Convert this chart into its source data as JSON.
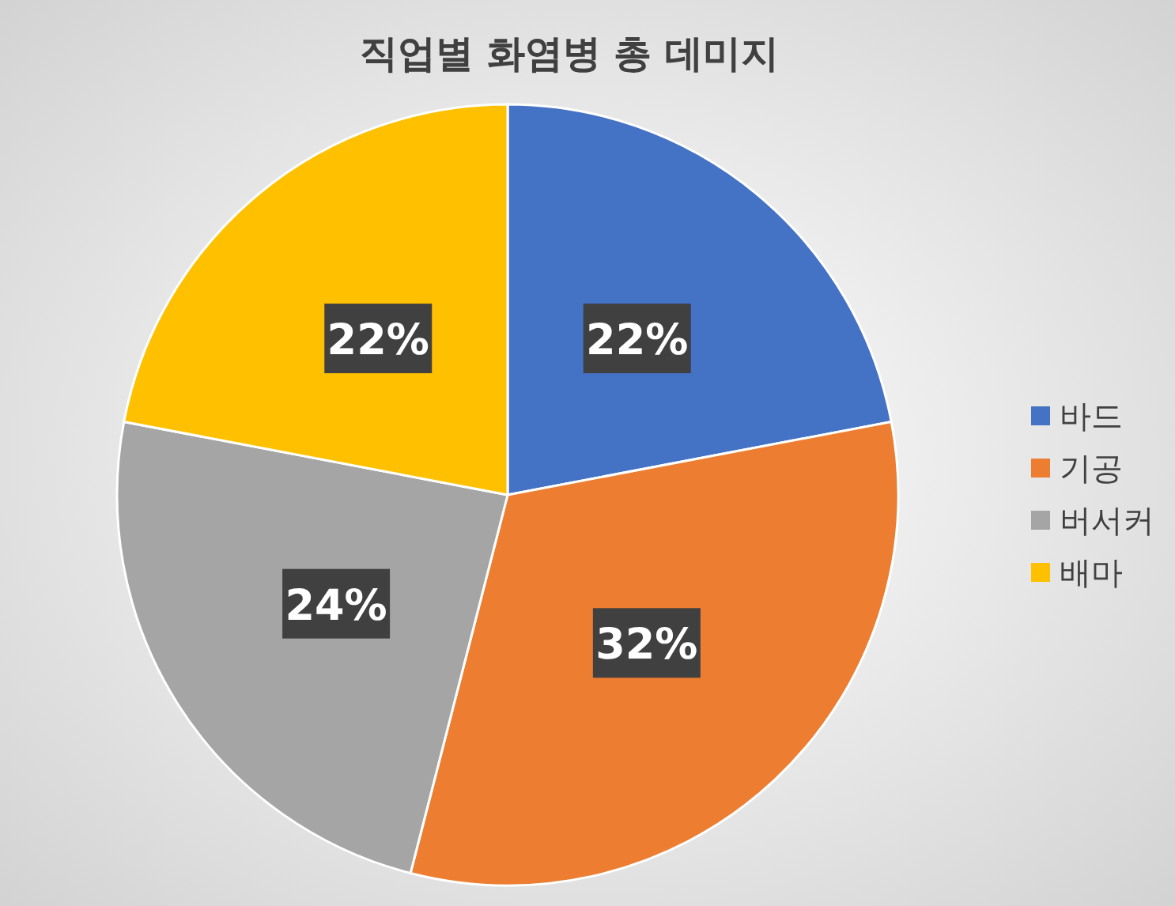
{
  "chart_data": {
    "type": "pie",
    "title": "직업별 화염병 총 데미지",
    "categories": [
      "바드",
      "기공",
      "버서커",
      "배마"
    ],
    "values": [
      22,
      32,
      24,
      22
    ],
    "colors": [
      "#4472c4",
      "#ed7d31",
      "#a5a5a5",
      "#ffc000"
    ],
    "value_labels": [
      "22%",
      "32%",
      "24%",
      "22%"
    ],
    "legend": "right"
  }
}
